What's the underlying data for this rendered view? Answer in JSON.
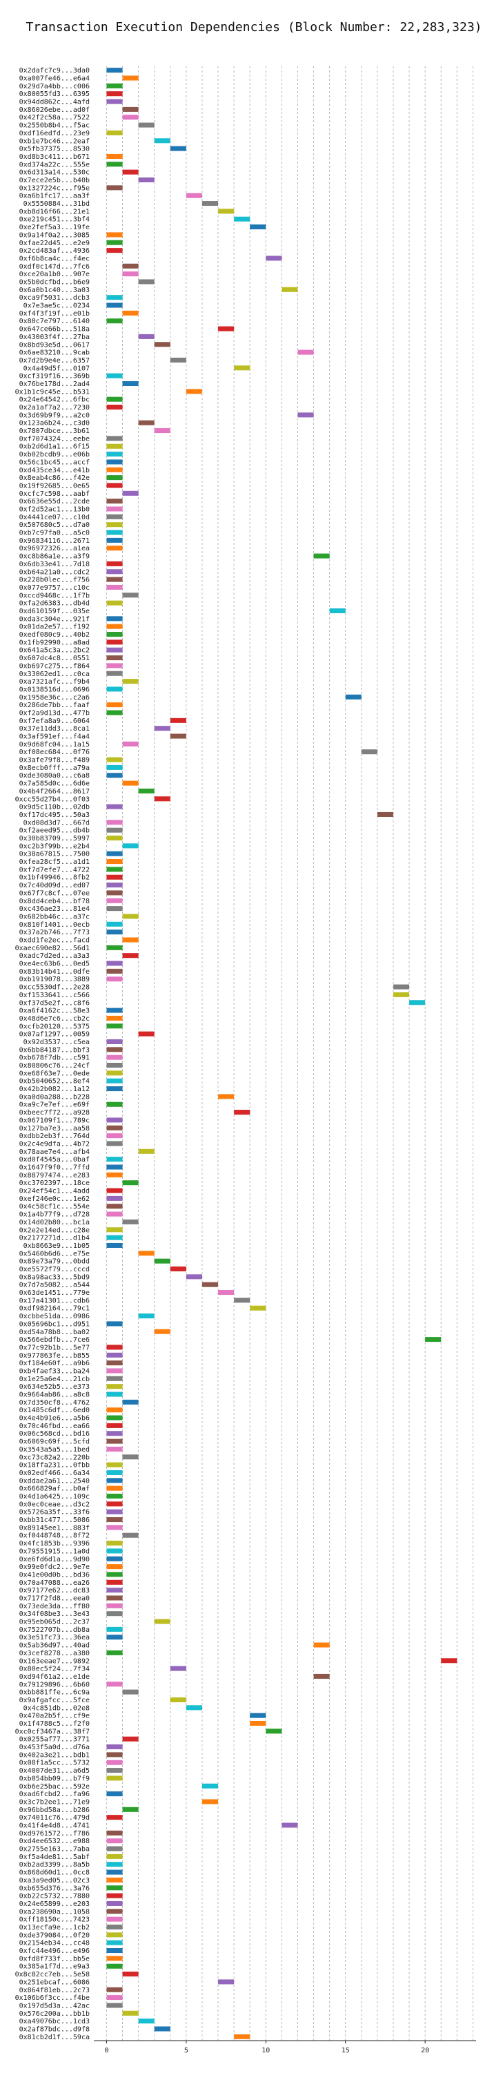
{
  "chart_data": {
    "type": "gantt",
    "title": "Transaction Execution Dependencies (Block Number: 22,283,323)",
    "xlim": [
      -0.8,
      23.2
    ],
    "xticks": [
      0,
      5,
      10,
      15,
      20
    ],
    "grid": "vertical-dashed",
    "bar_duration": 1,
    "colors": [
      "#1f77b4",
      "#ff7f0e",
      "#2ca02c",
      "#d62728",
      "#9467bd",
      "#8c564b",
      "#e377c2",
      "#7f7f7f",
      "#bcbd22",
      "#17becf"
    ],
    "rows": [
      {
        "label": "0x2dafc7c9...3da0",
        "start": 0
      },
      {
        "label": "0xa007fe46...e6a4",
        "start": 1
      },
      {
        "label": "0x29d7a4bb...c006",
        "start": 0
      },
      {
        "label": "0x80055fd3...6395",
        "start": 0
      },
      {
        "label": "0x94dd862c...4afd",
        "start": 0
      },
      {
        "label": "0x86026ebe...ad0f",
        "start": 1
      },
      {
        "label": "0x42f2c58a...7522",
        "start": 1
      },
      {
        "label": "0x2550b8b4...f5ac",
        "start": 2
      },
      {
        "label": "0xdf16edfd...23e9",
        "start": 0
      },
      {
        "label": "0xb1e7bc46...2eaf",
        "start": 3
      },
      {
        "label": "0x5fb37375...8530",
        "start": 4
      },
      {
        "label": "0xd8b3c411...b671",
        "start": 0
      },
      {
        "label": "0xd374a22c...555e",
        "start": 0
      },
      {
        "label": "0x6d313a14...530c",
        "start": 1
      },
      {
        "label": "0x7ece2e5b...b40b",
        "start": 2
      },
      {
        "label": "0x1327224c...f95e",
        "start": 0
      },
      {
        "label": "0xa6b1fc17...aa3f",
        "start": 5
      },
      {
        "label": "0x5550884...31bd",
        "start": 6
      },
      {
        "label": "0xb8d16f66...21e1",
        "start": 7
      },
      {
        "label": "0xe219c451...3bf4",
        "start": 8
      },
      {
        "label": "0xe2fef5a3...19fe",
        "start": 9
      },
      {
        "label": "0x9a14f0a2...3085",
        "start": 0
      },
      {
        "label": "0xfae22d45...e2e9",
        "start": 0
      },
      {
        "label": "0x2cd483af...4936",
        "start": 0
      },
      {
        "label": "0xf6b8ca4c...f4ec",
        "start": 10
      },
      {
        "label": "0xdf0c147d...7fc6",
        "start": 1
      },
      {
        "label": "0xce20a1b0...907e",
        "start": 1
      },
      {
        "label": "0x5b0dcfbd...b6e9",
        "start": 2
      },
      {
        "label": "0x6a0b1c40...3a03",
        "start": 11
      },
      {
        "label": "0xca9f5031...dcb3",
        "start": 0
      },
      {
        "label": "0x7e3ae5c...0234",
        "start": 0
      },
      {
        "label": "0xf4f3f19f...e01b",
        "start": 1
      },
      {
        "label": "0x80c7e797...6140",
        "start": 0
      },
      {
        "label": "0x647ce66b...518a",
        "start": 7
      },
      {
        "label": "0x43003f4f...27ba",
        "start": 2
      },
      {
        "label": "0x8bd93e5d...0617",
        "start": 3
      },
      {
        "label": "0x6ae83210...9cab",
        "start": 12
      },
      {
        "label": "0x7d2b9e4e...6357",
        "start": 4
      },
      {
        "label": "0x4a49d5f...0107",
        "start": 8
      },
      {
        "label": "0xcf319f16...369b",
        "start": 0
      },
      {
        "label": "0x76be178d...2ad4",
        "start": 1
      },
      {
        "label": "0x1b1c9c45e...b531",
        "start": 5
      },
      {
        "label": "0x24e64542...6fbc",
        "start": 0
      },
      {
        "label": "0x2a1af7a2...7230",
        "start": 0
      },
      {
        "label": "0x3d69b9f9...a2c0",
        "start": 12
      },
      {
        "label": "0x123a6b24...c3d0",
        "start": 2
      },
      {
        "label": "0x7807dbce...3b61",
        "start": 3
      },
      {
        "label": "0xf7074324...eebe",
        "start": 0
      },
      {
        "label": "0xb2d6d1a1...6f15",
        "start": 0
      },
      {
        "label": "0xb02bcdb9...e06b",
        "start": 0
      },
      {
        "label": "0x56c1bc45...accf",
        "start": 0
      },
      {
        "label": "0xd435ce34...e41b",
        "start": 0
      },
      {
        "label": "0x8eab4c86...f42e",
        "start": 0
      },
      {
        "label": "0x19f92685...0e65",
        "start": 0
      },
      {
        "label": "0xcfc7c598...aabf",
        "start": 1
      },
      {
        "label": "0x6636e55d...2cde",
        "start": 0
      },
      {
        "label": "0xf2d52ac1...13b0",
        "start": 0
      },
      {
        "label": "0x4441ce07...c10d",
        "start": 0
      },
      {
        "label": "0x507680c5...d7a0",
        "start": 0
      },
      {
        "label": "0xb7c97fa0...a5c0",
        "start": 0
      },
      {
        "label": "0x96834116...2671",
        "start": 0
      },
      {
        "label": "0x96972326...a1ea",
        "start": 0
      },
      {
        "label": "0xc8b86a1e...a3f9",
        "start": 13
      },
      {
        "label": "0x6db33e41...7d18",
        "start": 0
      },
      {
        "label": "0xb64a21a0...cdc2",
        "start": 0
      },
      {
        "label": "0x228b0lec...f756",
        "start": 0
      },
      {
        "label": "0x077e9757...c10c",
        "start": 0
      },
      {
        "label": "0xccd9468c...1f7b",
        "start": 1
      },
      {
        "label": "0xfa2d6383...db4d",
        "start": 0
      },
      {
        "label": "0xd610159f...035e",
        "start": 14
      },
      {
        "label": "0xda3c304e...921f",
        "start": 0
      },
      {
        "label": "0x01da2e57...f192",
        "start": 0
      },
      {
        "label": "0xedf080c9...40b2",
        "start": 0
      },
      {
        "label": "0x1fb92990...a8ad",
        "start": 0
      },
      {
        "label": "0x641a5c3a...2bc2",
        "start": 0
      },
      {
        "label": "0x607dc4c8...0551",
        "start": 0
      },
      {
        "label": "0xb697c275...f864",
        "start": 0
      },
      {
        "label": "0x33062ed1...c0ca",
        "start": 0
      },
      {
        "label": "0xa7321afc...f9b4",
        "start": 1
      },
      {
        "label": "0x0138516d...0696",
        "start": 0
      },
      {
        "label": "0x1958e36c...c2a6",
        "start": 15
      },
      {
        "label": "0x286de7bb...faaf",
        "start": 0
      },
      {
        "label": "0xf2a9d13d...477b",
        "start": 0
      },
      {
        "label": "0xf7efa8a9...6064",
        "start": 4
      },
      {
        "label": "0x37e11dd3...8ca1",
        "start": 3
      },
      {
        "label": "0x3af591ef...f4a4",
        "start": 4
      },
      {
        "label": "0x9d68fc04...1a15",
        "start": 1
      },
      {
        "label": "0xf08ec684...0f76",
        "start": 16
      },
      {
        "label": "0x3afe79f8...f489",
        "start": 0
      },
      {
        "label": "0x8ecb0fff...a79a",
        "start": 0
      },
      {
        "label": "0xde3080a0...c6a8",
        "start": 0
      },
      {
        "label": "0x7a585d0c...6d6e",
        "start": 1
      },
      {
        "label": "0x4b4f2664...8617",
        "start": 2
      },
      {
        "label": "0xcc55d27b4...0f03",
        "start": 3
      },
      {
        "label": "0x9d5c110b...02db",
        "start": 0
      },
      {
        "label": "0xf17dc495...50a3",
        "start": 17
      },
      {
        "label": "0xd08d3d7...667d",
        "start": 0
      },
      {
        "label": "0xf2aeed95...db4b",
        "start": 0
      },
      {
        "label": "0x30b83709...5997",
        "start": 0
      },
      {
        "label": "0xc2b3f99b...e2b4",
        "start": 1
      },
      {
        "label": "0x38a67815...7500",
        "start": 0
      },
      {
        "label": "0xfea28cf5...a1d1",
        "start": 0
      },
      {
        "label": "0xf7d7efe7...4722",
        "start": 0
      },
      {
        "label": "0x1bf49946...8fb2",
        "start": 0
      },
      {
        "label": "0x7c40d09d...ed07",
        "start": 0
      },
      {
        "label": "0x67f7c8cf...07ee",
        "start": 0
      },
      {
        "label": "0x8dd4ceb4...bf78",
        "start": 0
      },
      {
        "label": "0xc436ae23...81e4",
        "start": 0
      },
      {
        "label": "0x682bb46c...a37c",
        "start": 1
      },
      {
        "label": "0x810f1401...0ecb",
        "start": 0
      },
      {
        "label": "0x37a2b746...7f73",
        "start": 0
      },
      {
        "label": "0xdd1fe2ec...facd",
        "start": 1
      },
      {
        "label": "0xaec690e82...56d1",
        "start": 0
      },
      {
        "label": "0xadc7d2ed...a3a3",
        "start": 1
      },
      {
        "label": "0xe4ec63b6...0ed5",
        "start": 0
      },
      {
        "label": "0x83b14b41...0dfe",
        "start": 0
      },
      {
        "label": "0xb1919078...3889",
        "start": 0
      },
      {
        "label": "0xcc5530df...2e28",
        "start": 18
      },
      {
        "label": "0xf1533641...c566",
        "start": 18
      },
      {
        "label": "0xf37d5e2f...c8f6",
        "start": 19
      },
      {
        "label": "0xa6f4162c...58e3",
        "start": 0
      },
      {
        "label": "0x48d6e7c6...cb2c",
        "start": 0
      },
      {
        "label": "0xcfb20120...5375",
        "start": 0
      },
      {
        "label": "0x07af1297...0059",
        "start": 2
      },
      {
        "label": "0x92d3537...c5ea",
        "start": 0
      },
      {
        "label": "0x6bb84187...bbf3",
        "start": 0
      },
      {
        "label": "0xb678f7db...c591",
        "start": 0
      },
      {
        "label": "0x80806c76...24cf",
        "start": 0
      },
      {
        "label": "0xe68f63e7...0ede",
        "start": 0
      },
      {
        "label": "0xb5040652...8ef4",
        "start": 0
      },
      {
        "label": "0x42b2b082...1a12",
        "start": 0
      },
      {
        "label": "0xa0d0a288...b228",
        "start": 7
      },
      {
        "label": "0xa9c7e7ef...e69f",
        "start": 0
      },
      {
        "label": "0xbeec7f72...a928",
        "start": 8
      },
      {
        "label": "0x067109f1...789c",
        "start": 0
      },
      {
        "label": "0x127ba7e3...aa58",
        "start": 0
      },
      {
        "label": "0xdbb2eb3f...764d",
        "start": 0
      },
      {
        "label": "0x2c4e9dfa...4b72",
        "start": 0
      },
      {
        "label": "0x78aae7e4...afb4",
        "start": 2
      },
      {
        "label": "0xd0f4545a...0baf",
        "start": 0
      },
      {
        "label": "0x1647f9f0...7ffd",
        "start": 0
      },
      {
        "label": "0x88797474...e283",
        "start": 0
      },
      {
        "label": "0xc3702397...18ce",
        "start": 1
      },
      {
        "label": "0x24ef54c1...4add",
        "start": 0
      },
      {
        "label": "0xef246e0c...1e62",
        "start": 0
      },
      {
        "label": "0x4c58cf1c...554e",
        "start": 0
      },
      {
        "label": "0x1a4b77f9...d728",
        "start": 0
      },
      {
        "label": "0x14d02b80...bc1a",
        "start": 1
      },
      {
        "label": "0x2e2e14ed...c28e",
        "start": 0
      },
      {
        "label": "0x2177271d...d1b4",
        "start": 0
      },
      {
        "label": "0xb8663e9...1b05",
        "start": 0
      },
      {
        "label": "0x5460b6d6...e75e",
        "start": 2
      },
      {
        "label": "0x89e73a79...0bdd",
        "start": 3
      },
      {
        "label": "0xe5572f79...cccd",
        "start": 4
      },
      {
        "label": "0x8a98ac33...5bd9",
        "start": 5
      },
      {
        "label": "0x7d7a5082...a544",
        "start": 6
      },
      {
        "label": "0x63de1451...779e",
        "start": 7
      },
      {
        "label": "0x17a41301...cdb6",
        "start": 8
      },
      {
        "label": "0xdf982164...79c1",
        "start": 9
      },
      {
        "label": "0xcbbe51da...0986",
        "start": 2
      },
      {
        "label": "0x05696bc1...d951",
        "start": 0
      },
      {
        "label": "0xd54a78b8...ba02",
        "start": 3
      },
      {
        "label": "0x566ebdfb...7ce6",
        "start": 20
      },
      {
        "label": "0x77c92b1b...5e77",
        "start": 0
      },
      {
        "label": "0x977863fe...b855",
        "start": 0
      },
      {
        "label": "0xf184e60f...a9b6",
        "start": 0
      },
      {
        "label": "0xb4faef33...ba24",
        "start": 0
      },
      {
        "label": "0x1e25a6e4...21cb",
        "start": 0
      },
      {
        "label": "0x634e52b5...e373",
        "start": 0
      },
      {
        "label": "0x9664ab86...a8c8",
        "start": 0
      },
      {
        "label": "0x7d350cf8...4762",
        "start": 1
      },
      {
        "label": "0x1485c6df...6ed0",
        "start": 0
      },
      {
        "label": "0x4e4b91e6...a5b6",
        "start": 0
      },
      {
        "label": "0x70c46fbd...ea66",
        "start": 0
      },
      {
        "label": "0x06c568cd...bd16",
        "start": 0
      },
      {
        "label": "0x6069c69f...5cfd",
        "start": 0
      },
      {
        "label": "0x3543a5a5...1bed",
        "start": 0
      },
      {
        "label": "0xc73c82a2...220b",
        "start": 1
      },
      {
        "label": "0x18ffa231...0fbb",
        "start": 0
      },
      {
        "label": "0x02edf466...6a34",
        "start": 0
      },
      {
        "label": "0xddae2a61...2540",
        "start": 0
      },
      {
        "label": "0x666829af...b0af",
        "start": 0
      },
      {
        "label": "0x4d1a6425...109c",
        "start": 0
      },
      {
        "label": "0x0ec0ceae...d3c2",
        "start": 0
      },
      {
        "label": "0x5726a35f...33f6",
        "start": 0
      },
      {
        "label": "0xbb31c477...5086",
        "start": 0
      },
      {
        "label": "0x89145ee1...883f",
        "start": 0
      },
      {
        "label": "0xf0448748...8f72",
        "start": 1
      },
      {
        "label": "0x4fc1853b...9396",
        "start": 0
      },
      {
        "label": "0x79551915...1a0d",
        "start": 0
      },
      {
        "label": "0xe6fd6d1a...9d90",
        "start": 0
      },
      {
        "label": "0x99e0fdc2...9e7e",
        "start": 0
      },
      {
        "label": "0x41e00d0b...bd36",
        "start": 0
      },
      {
        "label": "0x70a47088...ea26",
        "start": 0
      },
      {
        "label": "0x97177e62...dc83",
        "start": 0
      },
      {
        "label": "0x717f2fd8...eea0",
        "start": 0
      },
      {
        "label": "0x73ede3da...ff80",
        "start": 0
      },
      {
        "label": "0x34f08be3...3e43",
        "start": 0
      },
      {
        "label": "0x95eb065d...2c37",
        "start": 3
      },
      {
        "label": "0x7522707b...db8a",
        "start": 0
      },
      {
        "label": "0x3e51fc73...36ea",
        "start": 0
      },
      {
        "label": "0x5ab36d97...40ad",
        "start": 13
      },
      {
        "label": "0x3cef8278...a380",
        "start": 0
      },
      {
        "label": "0x163eeae7...9892",
        "start": 21
      },
      {
        "label": "0x80ec5f24...7f34",
        "start": 4
      },
      {
        "label": "0xd94f61a2...e1de",
        "start": 13
      },
      {
        "label": "0x79129896...6b60",
        "start": 0
      },
      {
        "label": "0xbb881ffe...6c9a",
        "start": 1
      },
      {
        "label": "0x9afgafcc...5fce",
        "start": 4
      },
      {
        "label": "0x4c851db...02e8",
        "start": 5
      },
      {
        "label": "0x470a2b5f...cf9e",
        "start": 9
      },
      {
        "label": "0x1f4788c5...f2f0",
        "start": 9
      },
      {
        "label": "0xc0cf3467a...38f7",
        "start": 10
      },
      {
        "label": "0x0255af77...3771",
        "start": 1
      },
      {
        "label": "0x453f5a0d...d76a",
        "start": 0
      },
      {
        "label": "0x402a3e21...bdb1",
        "start": 0
      },
      {
        "label": "0x08f1a5cc...5732",
        "start": 0
      },
      {
        "label": "0x4007de31...a6d5",
        "start": 0
      },
      {
        "label": "0xb054bb09...b7f9",
        "start": 0
      },
      {
        "label": "0xb6e25bac...592e",
        "start": 6
      },
      {
        "label": "0xad6fcbd2...fa96",
        "start": 0
      },
      {
        "label": "0x3c7b2ee1...71e9",
        "start": 6
      },
      {
        "label": "0x96bbd58a...b286",
        "start": 1
      },
      {
        "label": "0x74011c76...479d",
        "start": 0
      },
      {
        "label": "0x41f4e4d8...4741",
        "start": 11
      },
      {
        "label": "0xd9761572...f786",
        "start": 0
      },
      {
        "label": "0xd4ee6532...e988",
        "start": 0
      },
      {
        "label": "0x2755e163...7aba",
        "start": 0
      },
      {
        "label": "0xf5a4de81...5abf",
        "start": 0
      },
      {
        "label": "0xb2ad3399...8a5b",
        "start": 0
      },
      {
        "label": "0x868d60d1...0cc8",
        "start": 0
      },
      {
        "label": "0xa3a9ed05...02c3",
        "start": 0
      },
      {
        "label": "0xb655d376...3a76",
        "start": 0
      },
      {
        "label": "0xb22c5732...7880",
        "start": 0
      },
      {
        "label": "0x24e65899...e203",
        "start": 0
      },
      {
        "label": "0xa238690a...1058",
        "start": 0
      },
      {
        "label": "0xff18150c...7423",
        "start": 0
      },
      {
        "label": "0x13ecfa9e...1cb2",
        "start": 0
      },
      {
        "label": "0xde379084...0f20",
        "start": 0
      },
      {
        "label": "0x2154eb34...cc48",
        "start": 0
      },
      {
        "label": "0xfc44e496...e496",
        "start": 0
      },
      {
        "label": "0xfd8f733f...bb5e",
        "start": 0
      },
      {
        "label": "0x385a1f7d...e9a3",
        "start": 0
      },
      {
        "label": "0x8c82cc7eb...5e58",
        "start": 1
      },
      {
        "label": "0x251ebcaf...6086",
        "start": 7
      },
      {
        "label": "0x864f81eb...2c73",
        "start": 0
      },
      {
        "label": "0x106b6f3cc...f4be",
        "start": 0
      },
      {
        "label": "0x197d5d3a...42ac",
        "start": 0
      },
      {
        "label": "0x576c200a...bb1b",
        "start": 1
      },
      {
        "label": "0xa49076bc...1cd3",
        "start": 2
      },
      {
        "label": "0x2af87bdc...d9f8",
        "start": 3
      },
      {
        "label": "0x81cb2d1f...59ca",
        "start": 8
      }
    ]
  }
}
